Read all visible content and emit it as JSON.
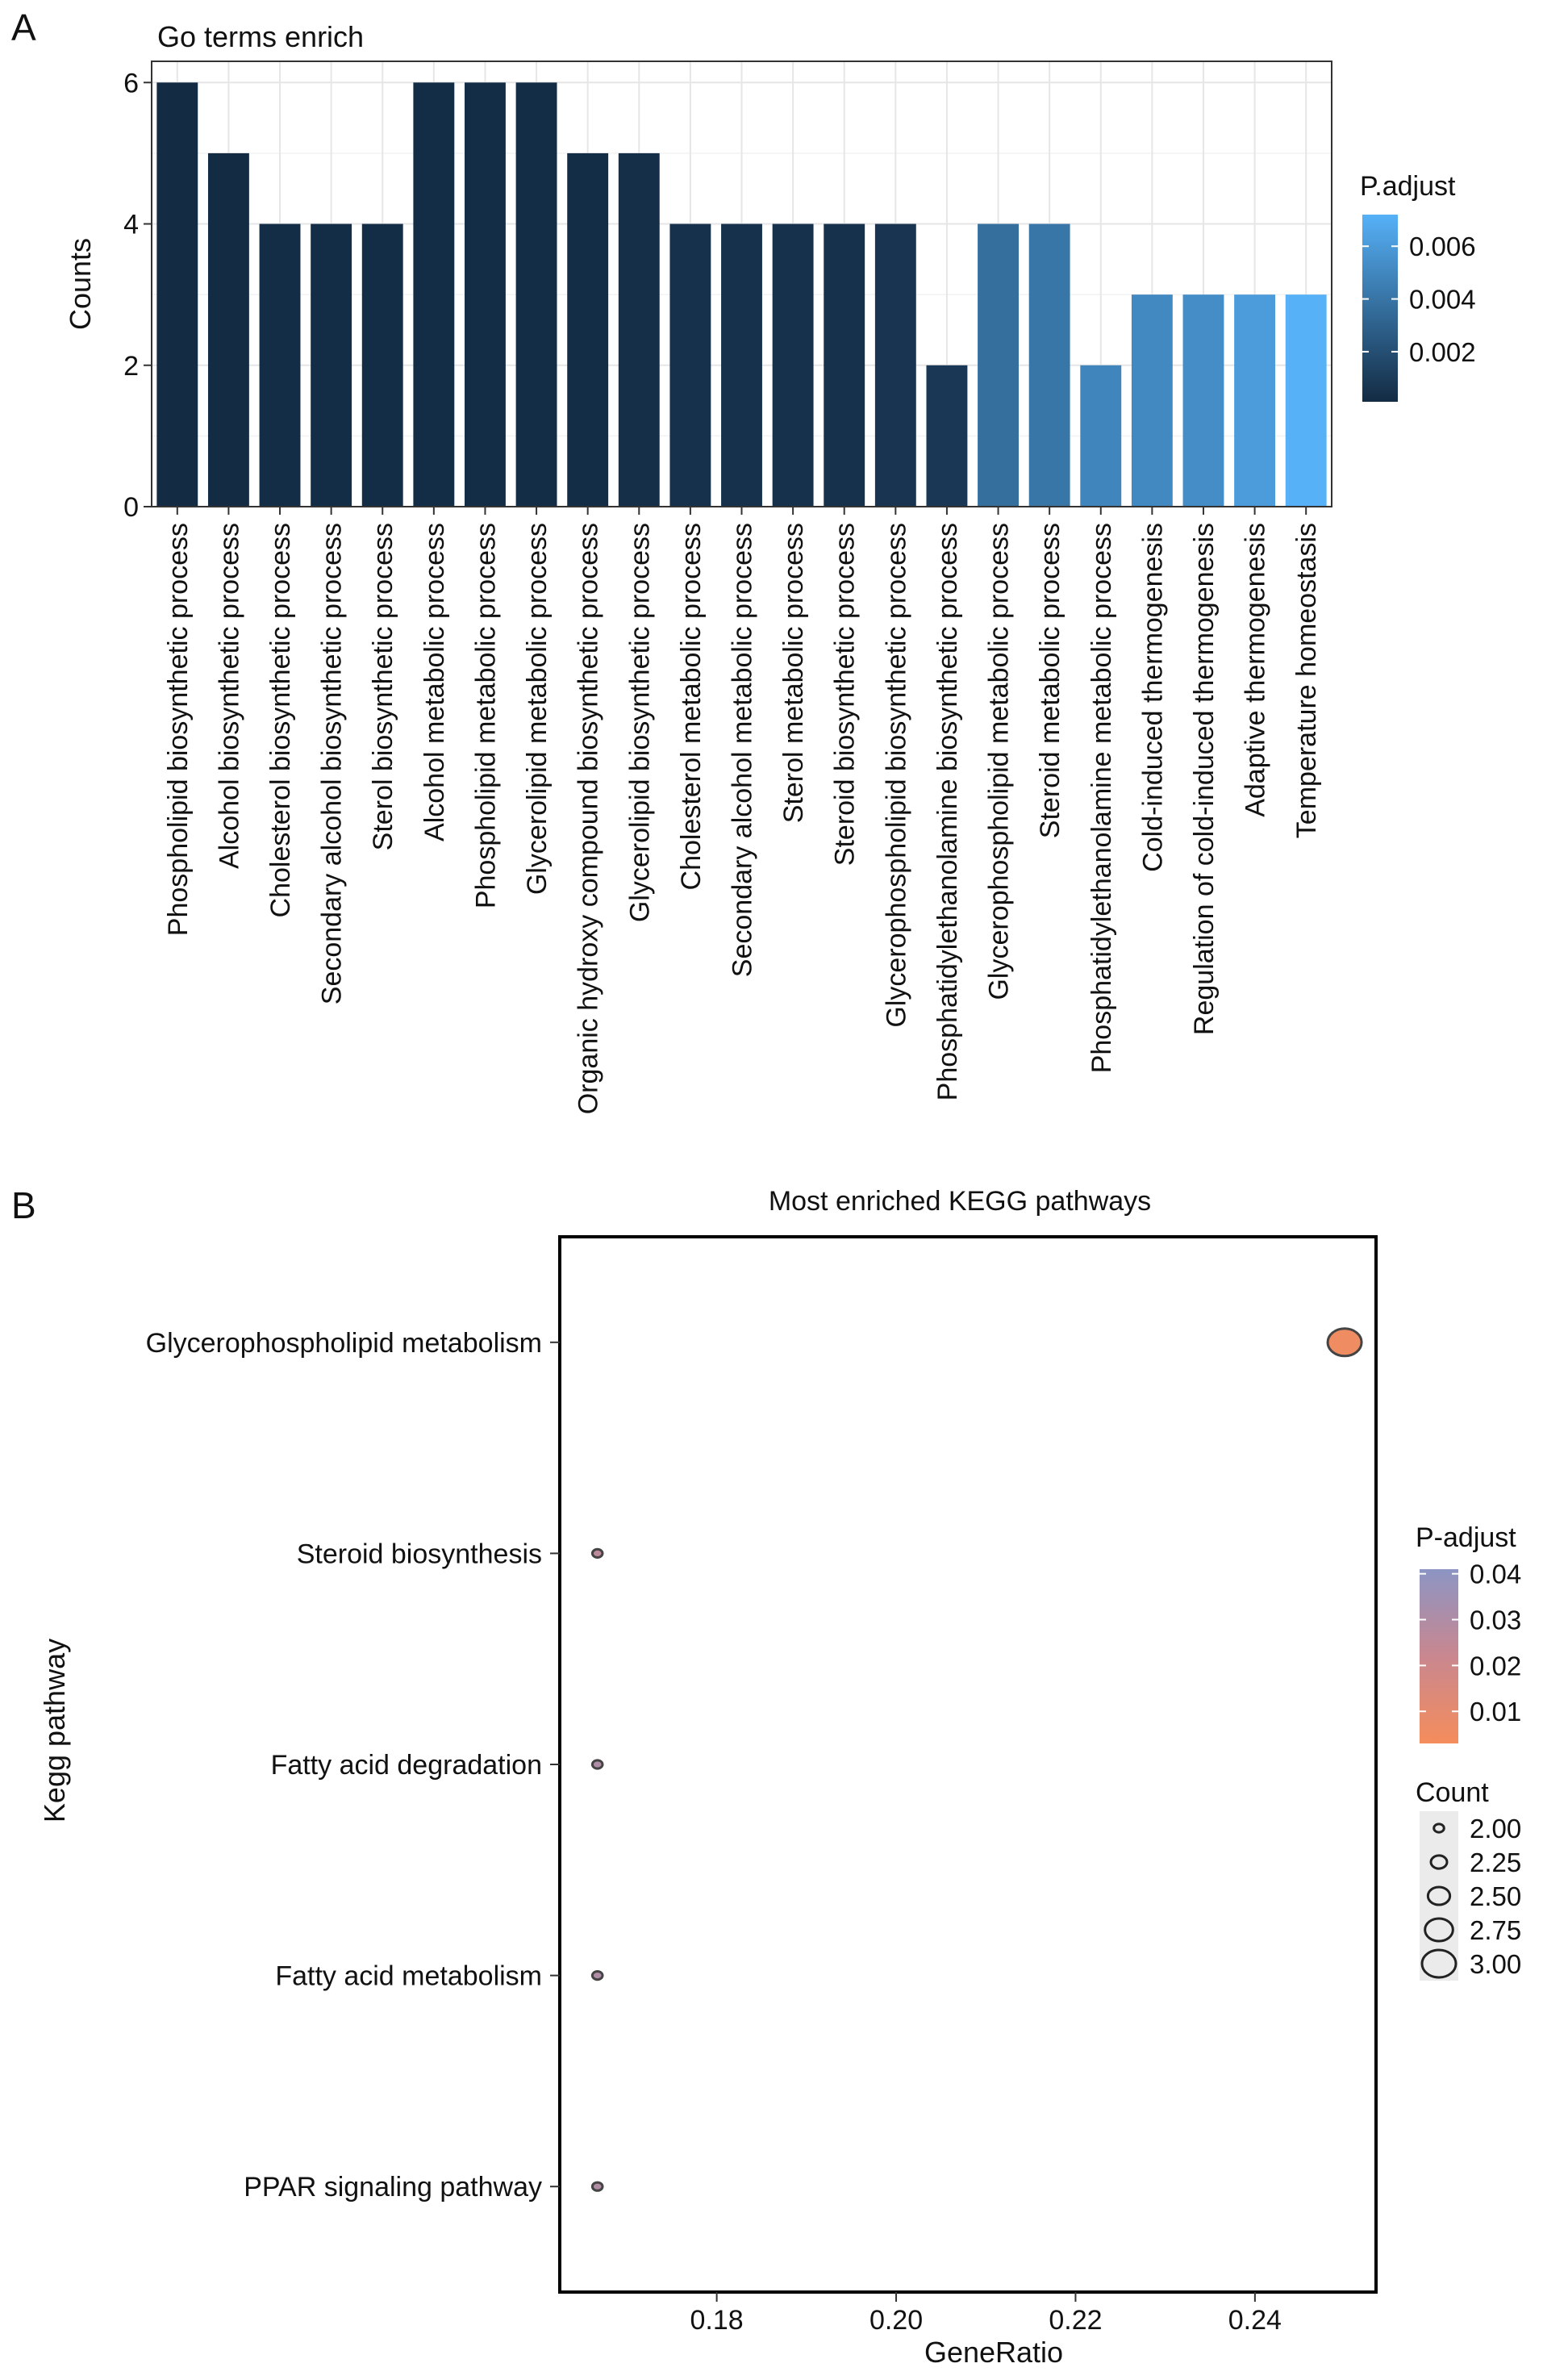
{
  "chart_data": [
    {
      "panel": "A",
      "type": "bar",
      "title": "Go terms enrich",
      "xlabel": "",
      "ylabel": "Counts",
      "ylim": [
        0,
        6.3
      ],
      "yticks": [
        0,
        2,
        4,
        6
      ],
      "grid": true,
      "legend_placement": "right",
      "color_legend": {
        "title": "P.adjust",
        "ticks": [
          0.002,
          0.004,
          0.006
        ],
        "tick_labels": [
          "0.002",
          "0.004",
          "0.006"
        ],
        "low_color": "#132b43",
        "high_color": "#56b1f7"
      },
      "categories": [
        "Phospholipid biosynthetic process",
        "Alcohol biosynthetic process",
        "Cholesterol biosynthetic process",
        "Secondary alcohol biosynthetic process",
        "Sterol biosynthetic process",
        "Alcohol metabolic process",
        "Phospholipid metabolic process",
        "Glycerolipid metabolic process",
        "Organic hydroxy compound biosynthetic process",
        "Glycerolipid biosynthetic process",
        "Cholesterol metabolic process",
        "Secondary alcohol metabolic process",
        "Sterol metabolic process",
        "Steroid biosynthetic process",
        "Glycerophospholipid biosynthetic process",
        "Phosphatidylethanolamine biosynthetic process",
        "Glycerophospholipid metabolic process",
        "Steroid metabolic process",
        "Phosphatidylethanolamine metabolic process",
        "Cold-induced thermogenesis",
        "Regulation of cold-induced thermogenesis",
        "Adaptive thermogenesis",
        "Temperature homeostasis"
      ],
      "values": [
        6,
        5,
        4,
        4,
        4,
        6,
        6,
        6,
        5,
        5,
        4,
        4,
        4,
        4,
        4,
        2,
        4,
        4,
        2,
        3,
        3,
        3,
        3
      ],
      "p_adjust": [
        0.0001,
        0.0001,
        0.0002,
        0.0002,
        0.0002,
        0.0002,
        0.0002,
        0.0002,
        0.0002,
        0.0003,
        0.0004,
        0.0004,
        0.0004,
        0.0004,
        0.0006,
        0.0008,
        0.0037,
        0.0041,
        0.0049,
        0.0051,
        0.0053,
        0.0061,
        0.0072
      ]
    },
    {
      "panel": "B",
      "type": "scatter",
      "title": "Most enriched KEGG pathways",
      "xlabel": "GeneRatio",
      "ylabel": "Kegg pathway",
      "xlim": [
        0.1625,
        0.2535
      ],
      "xticks": [
        0.18,
        0.2,
        0.22,
        0.24
      ],
      "xtick_labels": [
        "0.18",
        "0.20",
        "0.22",
        "0.24"
      ],
      "grid": false,
      "legend_placement": "right",
      "color_legend": {
        "title": "P-adjust",
        "ticks": [
          0.01,
          0.02,
          0.03,
          0.04
        ],
        "tick_labels": [
          "0.01",
          "0.02",
          "0.03",
          "0.04"
        ],
        "low_color": "#f58d5c",
        "high_color": "#8c95c4"
      },
      "size_legend": {
        "title": "Count",
        "values": [
          2.0,
          2.25,
          2.5,
          2.75,
          3.0
        ],
        "labels": [
          "2.00",
          "2.25",
          "2.50",
          "2.75",
          "3.00"
        ]
      },
      "pathways": [
        "Glycerophospholipid metabolism",
        "Steroid biosynthesis",
        "Fatty acid degradation",
        "Fatty acid metabolism",
        "PPAR signaling pathway"
      ],
      "gene_ratio": [
        0.25,
        0.1667,
        0.1667,
        0.1667,
        0.1667
      ],
      "count": [
        3,
        2,
        2,
        2,
        2
      ],
      "p_adjust": [
        0.005,
        0.026,
        0.03,
        0.03,
        0.03
      ]
    }
  ]
}
